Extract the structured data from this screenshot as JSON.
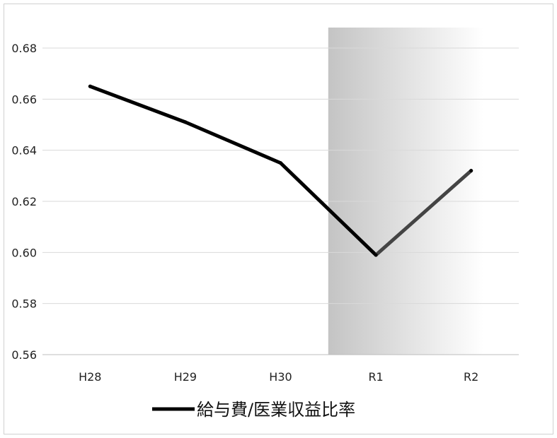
{
  "chart_data": {
    "type": "line",
    "categories": [
      "H28",
      "H29",
      "H30",
      "R1",
      "R2"
    ],
    "series": [
      {
        "name": "給与費/医業収益比率",
        "values": [
          0.665,
          0.651,
          0.635,
          0.599,
          0.632
        ],
        "color": "#000000"
      }
    ],
    "ylim": [
      0.56,
      0.68
    ],
    "yticks": [
      "0.56",
      "0.58",
      "0.60",
      "0.62",
      "0.64",
      "0.66",
      "0.68"
    ],
    "grid": true,
    "legend_position": "bottom",
    "highlight": {
      "categories": [
        "R1",
        "R2"
      ],
      "color": "#c4c4c4"
    },
    "highlight_series_color": "#444444"
  }
}
